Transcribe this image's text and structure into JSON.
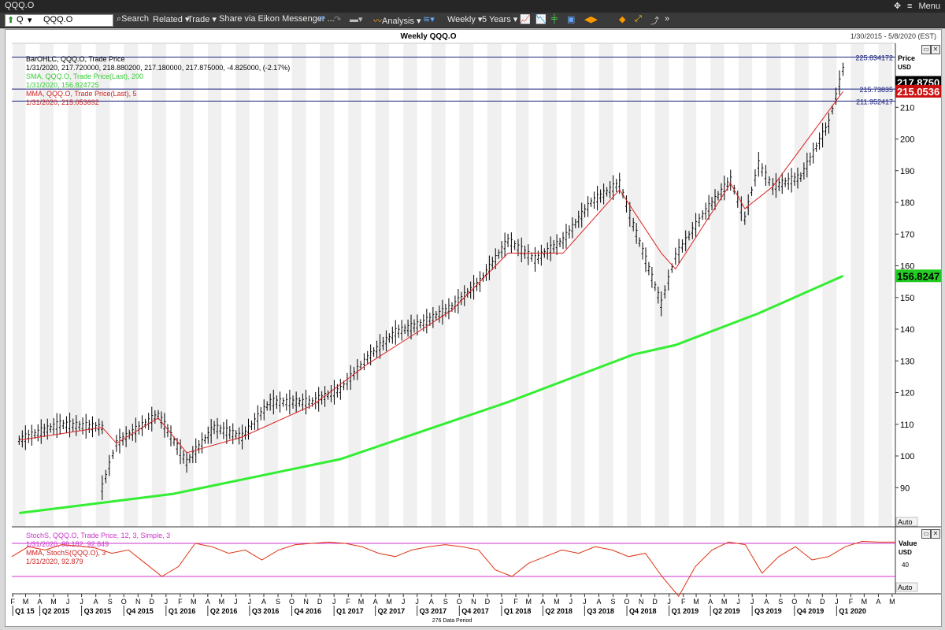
{
  "window": {
    "title": "QQQ.O",
    "pin_icon": "pin-icon",
    "menu_label": "Menu"
  },
  "toolbar": {
    "ric_value": "QQQ.O",
    "ric_prefix": "Q",
    "search": "Search",
    "related": "Related",
    "trade": "Trade",
    "share": "Share via Eikon Messenger ...",
    "analysis": "Analysis",
    "interval": "Weekly",
    "range": "5 Years"
  },
  "chart": {
    "title": "Weekly QQQ.O",
    "date_range": "1/30/2015 - 5/8/2020 (EST)",
    "price_label": "Price",
    "currency": "USD",
    "auto_label": "Auto",
    "data_period": "276 Data Period",
    "legend": [
      {
        "text": "BarOHLC, QQQ.O, Trade Price",
        "color": "#000000"
      },
      {
        "text": "1/31/2020, 217.720000, 218.880200, 217.180000, 217.875000, -4.825000, (-2.17%)",
        "color": "#000000",
        "accent": "#cc0000"
      },
      {
        "text": "SMA, QQQ.O, Trade Price(Last),  200",
        "color": "#33cc33"
      },
      {
        "text": "1/31/2020, 156.824725",
        "color": "#33cc33"
      },
      {
        "text": "MMA, QQQ.O, Trade Price(Last),  5",
        "color": "#cc2222"
      },
      {
        "text": "1/31/2020, 215.053692",
        "color": "#cc2222"
      }
    ],
    "hlines": [
      {
        "value": 225.834172,
        "label": "225.834172"
      },
      {
        "value": 215.73835,
        "label": "215.73835"
      },
      {
        "value": 211.952417,
        "label": "211.952417"
      }
    ],
    "badges": [
      {
        "label": "217.8750",
        "value": 217.875,
        "bg": "#000000",
        "fg": "#ffffff"
      },
      {
        "label": "215.0536",
        "value": 215.0536,
        "bg": "#cc1111",
        "fg": "#ffffff"
      },
      {
        "label": "156.8247",
        "value": 156.8247,
        "bg": "#22cc22",
        "fg": "#000000"
      }
    ]
  },
  "stoch": {
    "legend": [
      {
        "text": "StochS, QQQ.O, Trade Price,  12, 3, Simple, 3",
        "color": "#cc33cc"
      },
      {
        "text": "1/31/2020, 88.182, 92.849",
        "color": "#cc33cc"
      },
      {
        "text": "MMA, StochS(QQQ.O),  3",
        "color": "#cc2222"
      },
      {
        "text": "1/31/2020, 92.879",
        "color": "#cc2222"
      }
    ],
    "value_label": "Value",
    "currency": "USD",
    "tick": "40",
    "auto_label": "Auto"
  },
  "chart_data": {
    "type": "line",
    "title": "Weekly QQQ.O",
    "ylabel": "Price USD",
    "ylim": [
      80,
      230
    ],
    "yticks": [
      90,
      100,
      110,
      120,
      130,
      140,
      150,
      160,
      170,
      180,
      190,
      200,
      210
    ],
    "month_ticks": [
      "F",
      "M",
      "A",
      "M",
      "J",
      "J",
      "A",
      "S",
      "O",
      "N",
      "D",
      "J",
      "F",
      "M",
      "A",
      "M",
      "J",
      "J",
      "A",
      "S",
      "O",
      "N",
      "D",
      "J",
      "F",
      "M",
      "A",
      "M",
      "J",
      "J",
      "A",
      "S",
      "O",
      "N",
      "D",
      "J",
      "F",
      "M",
      "A",
      "M",
      "J",
      "J",
      "A",
      "S",
      "O",
      "N",
      "D",
      "J",
      "F",
      "M",
      "A",
      "M",
      "J",
      "J",
      "A",
      "S",
      "O",
      "N",
      "D",
      "J",
      "F",
      "M",
      "A",
      "M",
      "J",
      "J",
      "A",
      "S",
      "O",
      "N",
      "D",
      "J",
      "F",
      "M",
      "A",
      "M"
    ],
    "quarters": [
      "Q1 15",
      "Q2 2015",
      "Q3 2015",
      "Q4 2015",
      "Q1 2016",
      "Q2 2016",
      "Q3 2016",
      "Q4 2016",
      "Q1 2017",
      "Q2 2017",
      "Q3 2017",
      "Q4 2017",
      "Q1 2018",
      "Q2 2018",
      "Q3 2018",
      "Q4 2018",
      "Q1 2019",
      "Q2 2019",
      "Q3 2019",
      "Q4 2019",
      "Q1 2020"
    ],
    "series": [
      {
        "name": "BarOHLC, QQQ.O, Trade Price",
        "dates": [
          "2015-02",
          "2015-05",
          "2015-08",
          "2015-08",
          "2015-09",
          "2015-12",
          "2016-02",
          "2016-04",
          "2016-06",
          "2016-08",
          "2016-11",
          "2017-01",
          "2017-03",
          "2017-05",
          "2017-07",
          "2017-09",
          "2017-11",
          "2018-01",
          "2018-03",
          "2018-05",
          "2018-07",
          "2018-09",
          "2018-10",
          "2018-12",
          "2019-01",
          "2019-03",
          "2019-05",
          "2019-06",
          "2019-07",
          "2019-08",
          "2019-10",
          "2019-12",
          "2020-01",
          "2020-01"
        ],
        "values": [
          105,
          110,
          109,
          90,
          104,
          113,
          98,
          109,
          106,
          117,
          117,
          121,
          131,
          139,
          142,
          147,
          155,
          168,
          162,
          168,
          180,
          186,
          173,
          148,
          163,
          176,
          187,
          175,
          192,
          185,
          188,
          205,
          222,
          218
        ]
      },
      {
        "name": "SMA, QQQ.O, Trade Price(Last), 200",
        "dates": [
          "2015-02",
          "2016-01",
          "2017-01",
          "2018-01",
          "2018-10",
          "2019-01",
          "2019-07",
          "2020-01"
        ],
        "values": [
          82,
          88,
          99,
          117,
          132,
          135,
          145,
          156.8
        ]
      },
      {
        "name": "MMA, QQQ.O, Trade Price(Last), 5",
        "dates": [
          "2015-02",
          "2015-08",
          "2015-09",
          "2015-12",
          "2016-02",
          "2016-06",
          "2016-11",
          "2017-03",
          "2017-09",
          "2018-01",
          "2018-05",
          "2018-09",
          "2018-12",
          "2019-01",
          "2019-05",
          "2019-06",
          "2019-08",
          "2020-01"
        ],
        "values": [
          105,
          109,
          104,
          112,
          101,
          106,
          116,
          129,
          146,
          164,
          164,
          184,
          164,
          159,
          186,
          178,
          185,
          215
        ]
      }
    ],
    "stoch_series": [
      {
        "name": "StochS",
        "values": [
          70,
          85,
          80,
          88,
          86,
          83,
          75,
          80,
          60,
          40,
          55,
          90,
          85,
          75,
          80,
          65,
          80,
          88,
          90,
          92,
          90,
          85,
          75,
          70,
          80,
          85,
          88,
          85,
          80,
          50,
          40,
          60,
          70,
          80,
          75,
          85,
          80,
          70,
          75,
          40,
          10,
          55,
          80,
          92,
          88,
          45,
          70,
          85,
          65,
          70,
          85,
          93,
          92,
          92
        ]
      }
    ]
  }
}
